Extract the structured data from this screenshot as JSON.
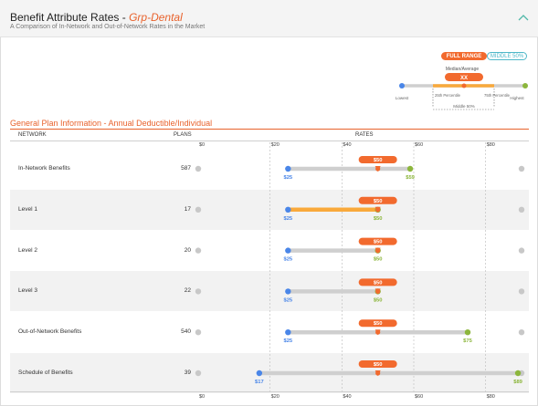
{
  "header": {
    "title": "Benefit Attribute Rates",
    "title_separator": " - ",
    "group_name": "Grp-Dental",
    "subtitle": "A Comparison of In-Network and Out-of-Network Rates in the Market",
    "collapse_icon": "chevron-up-icon"
  },
  "legend": {
    "full_range_button": "FULL RANGE",
    "middle_button": "MIDDLE 50%",
    "median_label": "Median/Average",
    "median_value": "XX",
    "lowest_label": "Lowest",
    "p25_label": "25th Percentile",
    "p75_label": "75th Percentile",
    "highest_label": "Highest",
    "middle_label": "Middle 50%"
  },
  "section": {
    "title": "General Plan Information - Annual Deductible/Individual",
    "col_network": "NETWORK",
    "col_plans": "PLANS",
    "col_rates": "RATES"
  },
  "axis": {
    "ticks": [
      "$0",
      "$20",
      "$40",
      "$60",
      "$80"
    ],
    "bottom_ticks": [
      "$0",
      "$20",
      "$40",
      "$60",
      "$80"
    ]
  },
  "colors": {
    "low": "#4a86e8",
    "median": "#f26a2e",
    "high": "#8cb63c",
    "middle_band": "#f9a93b",
    "range": "#cfcfcf",
    "accent": "#e8622c"
  },
  "chart_data": {
    "type": "range",
    "xlim": [
      0,
      90
    ],
    "xticks": [
      0,
      20,
      40,
      60,
      80
    ],
    "rows": [
      {
        "name": "In-Network Benefits",
        "plans": "587",
        "low": 25,
        "median": 50,
        "high": 59,
        "p25": 50,
        "p75": 50,
        "low_label": "$25",
        "median_label": "$50",
        "high_label": "$59"
      },
      {
        "name": "Level 1",
        "plans": "17",
        "low": 25,
        "median": 50,
        "high": 50,
        "p25": 25,
        "p75": 50,
        "low_label": "$25",
        "median_label": "$50",
        "high_label": "$50"
      },
      {
        "name": "Level 2",
        "plans": "20",
        "low": 25,
        "median": 50,
        "high": 50,
        "p25": 50,
        "p75": 50,
        "low_label": "$25",
        "median_label": "$50",
        "high_label": "$50"
      },
      {
        "name": "Level 3",
        "plans": "22",
        "low": 25,
        "median": 50,
        "high": 50,
        "p25": 50,
        "p75": 50,
        "low_label": "$25",
        "median_label": "$50",
        "high_label": "$50"
      },
      {
        "name": "Out-of-Network Benefits",
        "plans": "540",
        "low": 25,
        "median": 50,
        "high": 75,
        "p25": 50,
        "p75": 50,
        "low_label": "$25",
        "median_label": "$50",
        "high_label": "$75"
      },
      {
        "name": "Schedule of Benefits",
        "plans": "39",
        "low": 17,
        "median": 50,
        "high": 89,
        "p25": 50,
        "p75": 50,
        "low_label": "$17",
        "median_label": "$50",
        "high_label": "$89"
      }
    ]
  }
}
